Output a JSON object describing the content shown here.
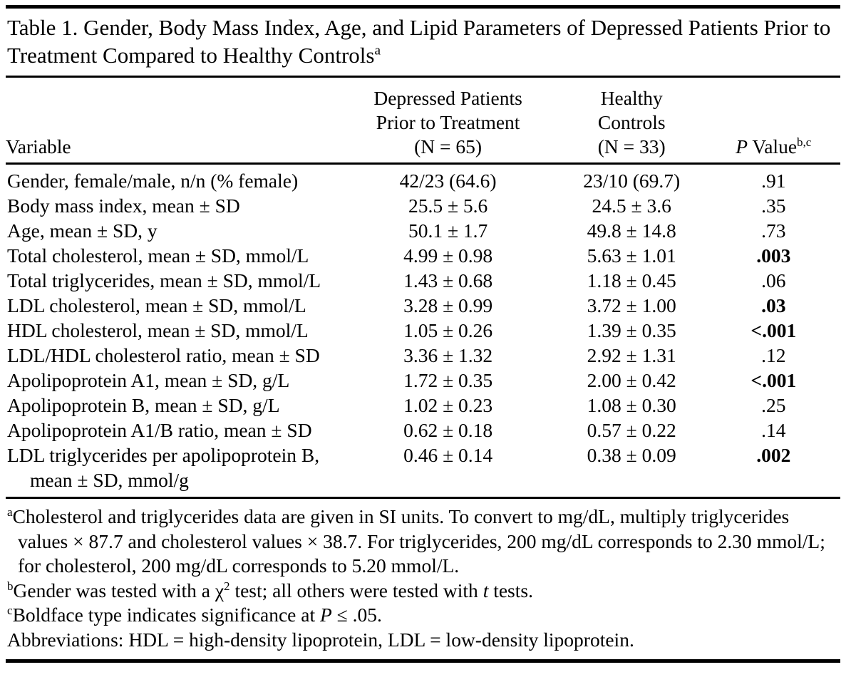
{
  "table": {
    "title_label": "Table 1.",
    "title_text": " Gender, Body Mass Index, Age, and Lipid Parameters of Depressed Patients Prior to Treatment Compared to Healthy Controls",
    "title_sup": "a",
    "columns": [
      {
        "label": "Variable"
      },
      {
        "lines": [
          "Depressed Patients",
          "Prior to Treatment",
          "(N = 65)"
        ]
      },
      {
        "lines": [
          "Healthy",
          "Controls",
          "(N = 33)"
        ]
      },
      {
        "italic_label": "P",
        "label": " Value",
        "sup": "b,c"
      }
    ],
    "rows": [
      {
        "variable": "Gender, female/male, n/n (% female)",
        "depressed": "42/23 (64.6)",
        "healthy": "23/10 (69.7)",
        "p": ".91",
        "p_bold": false
      },
      {
        "variable": "Body mass index, mean ± SD",
        "depressed": "25.5 ± 5.6",
        "healthy": "24.5 ± 3.6",
        "p": ".35",
        "p_bold": false
      },
      {
        "variable": "Age, mean ± SD, y",
        "depressed": "50.1 ± 1.7",
        "healthy": "49.8 ± 14.8",
        "p": ".73",
        "p_bold": false
      },
      {
        "variable": "Total cholesterol, mean ± SD, mmol/L",
        "depressed": "4.99 ± 0.98",
        "healthy": "5.63 ± 1.01",
        "p": ".003",
        "p_bold": true
      },
      {
        "variable": "Total triglycerides, mean ± SD, mmol/L",
        "depressed": "1.43 ± 0.68",
        "healthy": "1.18 ± 0.45",
        "p": ".06",
        "p_bold": false
      },
      {
        "variable": "LDL cholesterol, mean ± SD, mmol/L",
        "depressed": "3.28 ± 0.99",
        "healthy": "3.72 ± 1.00",
        "p": ".03",
        "p_bold": true
      },
      {
        "variable": "HDL cholesterol, mean ± SD, mmol/L",
        "depressed": "1.05 ± 0.26",
        "healthy": "1.39 ± 0.35",
        "p": "<.001",
        "p_bold": true
      },
      {
        "variable": "LDL/HDL cholesterol ratio, mean ± SD",
        "depressed": "3.36 ± 1.32",
        "healthy": "2.92 ± 1.31",
        "p": ".12",
        "p_bold": false
      },
      {
        "variable": "Apolipoprotein A1, mean ± SD, g/L",
        "depressed": "1.72 ± 0.35",
        "healthy": "2.00 ± 0.42",
        "p": "<.001",
        "p_bold": true
      },
      {
        "variable": "Apolipoprotein B, mean ± SD, g/L",
        "depressed": "1.02 ± 0.23",
        "healthy": "1.08 ± 0.30",
        "p": ".25",
        "p_bold": false
      },
      {
        "variable": "Apolipoprotein A1/B ratio, mean ± SD",
        "depressed": "0.62 ± 0.18",
        "healthy": "0.57 ± 0.22",
        "p": ".14",
        "p_bold": false
      },
      {
        "variable": "LDL triglycerides per apolipoprotein B,",
        "variable_line2": "mean ± SD, mmol/g",
        "depressed": "0.46 ± 0.14",
        "healthy": "0.38 ± 0.09",
        "p": ".002",
        "p_bold": true
      }
    ]
  },
  "footnotes": [
    {
      "marker": "a",
      "segments": [
        {
          "text": "Cholesterol and triglycerides data are given in SI units. To convert to mg/dL, multiply triglycerides values × 87.7 and cholesterol values × 38.7. For triglycerides, 200 mg/dL corresponds to 2.30 mmol/L; for cholesterol, 200 mg/dL corresponds to 5.20 mmol/L."
        }
      ]
    },
    {
      "marker": "b",
      "segments": [
        {
          "text": "Gender was tested with a χ"
        },
        {
          "text": "2",
          "sup": true
        },
        {
          "text": " test; all others were tested with "
        },
        {
          "text": "t",
          "italic": true
        },
        {
          "text": " tests."
        }
      ]
    },
    {
      "marker": "c",
      "segments": [
        {
          "text": "Boldface type indicates significance at "
        },
        {
          "text": "P",
          "italic": true
        },
        {
          "text": " ≤ .05."
        }
      ]
    },
    {
      "marker": "",
      "segments": [
        {
          "text": "Abbreviations: HDL = high-density lipoprotein, LDL = low-density lipoprotein."
        }
      ]
    }
  ]
}
